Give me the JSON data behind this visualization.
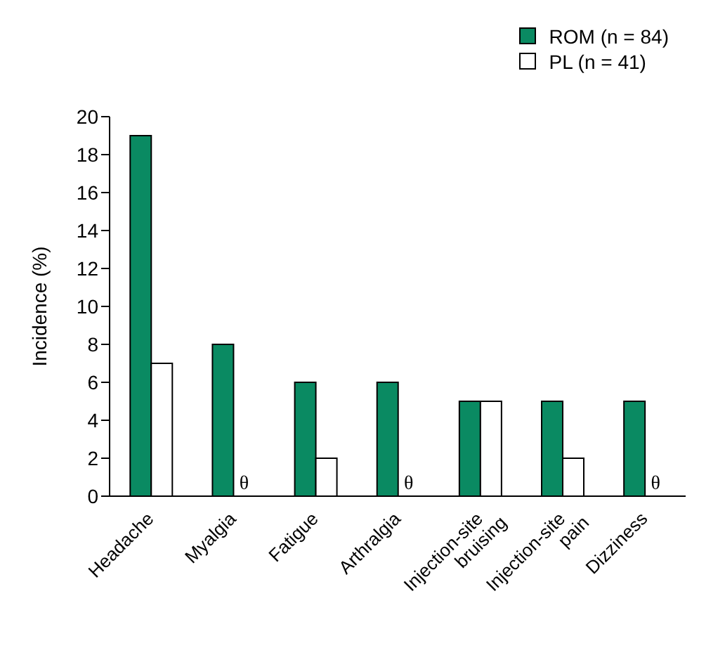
{
  "chart_data": {
    "type": "bar",
    "ylabel": "Incidence (%)",
    "categories": [
      "Headache",
      "Myalgia",
      "Fatigue",
      "Arthralgia",
      "Injection-site\nbruising",
      "Injection-site\npain",
      "Dizziness"
    ],
    "series": [
      {
        "name": "ROM (n = 84)",
        "color": "#0a8a62",
        "values": [
          19,
          8,
          6,
          6,
          5,
          5,
          5
        ]
      },
      {
        "name": "PL (n = 41)",
        "color": "#ffffff",
        "values": [
          7,
          0,
          2,
          0,
          5,
          2,
          0
        ],
        "value_labels": [
          null,
          "θ",
          null,
          "θ",
          null,
          null,
          "θ"
        ]
      }
    ],
    "ylim": [
      0,
      20
    ],
    "yticks": [
      0,
      2,
      4,
      6,
      8,
      10,
      12,
      14,
      16,
      18,
      20
    ],
    "grid": false,
    "legend": "top right"
  }
}
